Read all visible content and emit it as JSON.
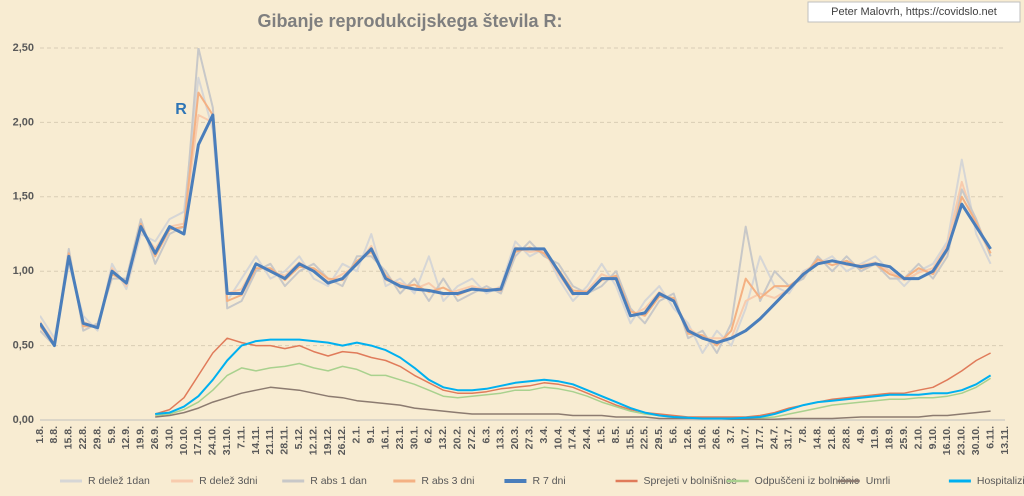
{
  "chart_data": {
    "type": "line",
    "title": "Gibanje reprodukcijskega števila R:",
    "source": "Peter Malovrh, https://covidslo.net",
    "annotation": "R",
    "grid": true,
    "legend_position": "bottom",
    "ylim": [
      0,
      2.5
    ],
    "yticks": [
      {
        "value": 0,
        "label": "0,00"
      },
      {
        "value": 0.5,
        "label": "0,50"
      },
      {
        "value": 1,
        "label": "1,00"
      },
      {
        "value": 1.5,
        "label": "1,50"
      },
      {
        "value": 2,
        "label": "2,00"
      },
      {
        "value": 2.5,
        "label": "2,50"
      }
    ],
    "categories": [
      "1.8.",
      "8.8.",
      "15.8.",
      "22.8.",
      "29.8.",
      "5.9.",
      "12.9.",
      "19.9.",
      "26.9.",
      "3.10.",
      "10.10.",
      "17.10.",
      "24.10.",
      "31.10.",
      "7.11.",
      "14.11.",
      "21.11.",
      "28.11.",
      "5.12.",
      "12.12.",
      "19.12.",
      "26.12.",
      "2.1.",
      "9.1.",
      "16.1.",
      "23.1.",
      "30.1.",
      "6.2.",
      "13.2.",
      "20.2.",
      "27.2.",
      "6.3.",
      "13.3.",
      "20.3.",
      "27.3.",
      "3.4.",
      "10.4.",
      "17.4.",
      "24.4.",
      "1.5.",
      "8.5.",
      "15.5.",
      "22.5.",
      "29.5.",
      "5.6.",
      "12.6.",
      "19.6.",
      "26.6.",
      "3.7.",
      "10.7.",
      "17.7.",
      "24.7.",
      "31.7.",
      "7.8.",
      "14.8.",
      "21.8.",
      "28.8.",
      "4.9.",
      "11.9.",
      "18.9.",
      "25.9.",
      "2.10.",
      "9.10.",
      "16.10.",
      "23.10.",
      "30.10.",
      "6.11.",
      "13.11."
    ],
    "series": [
      {
        "name": "R delež 1dan",
        "color": "#d6d6d6",
        "width": 2,
        "values": [
          0.7,
          0.55,
          1.05,
          0.7,
          0.6,
          1.05,
          0.88,
          1.25,
          1.2,
          1.35,
          1.4,
          2.3,
          1.95,
          0.8,
          0.95,
          1.1,
          0.95,
          1.0,
          1.1,
          0.95,
          0.9,
          1.05,
          1.0,
          1.25,
          0.9,
          0.95,
          0.85,
          1.1,
          0.8,
          0.9,
          0.95,
          0.85,
          0.9,
          1.2,
          1.1,
          1.15,
          0.95,
          0.8,
          0.9,
          1.05,
          0.9,
          0.65,
          0.8,
          0.9,
          0.75,
          0.65,
          0.45,
          0.6,
          0.5,
          0.75,
          1.1,
          0.9,
          0.85,
          1.0,
          1.05,
          1.1,
          1.0,
          1.05,
          1.1,
          1.0,
          0.9,
          1.0,
          1.05,
          1.2,
          1.75,
          1.25,
          1.05,
          null
        ]
      },
      {
        "name": "R delež 3dni",
        "color": "#f8cbad",
        "width": 2,
        "values": [
          0.66,
          0.52,
          1.08,
          0.66,
          0.62,
          1.02,
          0.9,
          1.28,
          1.15,
          1.3,
          1.32,
          2.05,
          2.0,
          0.85,
          0.88,
          1.05,
          1.0,
          0.97,
          1.06,
          1.0,
          0.93,
          0.98,
          1.04,
          1.17,
          0.94,
          0.92,
          0.88,
          0.92,
          0.84,
          0.87,
          0.9,
          0.87,
          0.89,
          1.16,
          1.13,
          1.14,
          0.98,
          0.84,
          0.87,
          0.98,
          0.94,
          0.7,
          0.75,
          0.86,
          0.8,
          0.62,
          0.55,
          0.55,
          0.55,
          0.8,
          0.85,
          0.82,
          0.88,
          0.99,
          1.06,
          1.07,
          1.04,
          1.04,
          1.06,
          1.0,
          0.94,
          0.99,
          1.02,
          1.18,
          1.6,
          1.3,
          1.12,
          null
        ]
      },
      {
        "name": "R abs 1 dan",
        "color": "#c8c8c8",
        "width": 2,
        "values": [
          0.6,
          0.5,
          1.15,
          0.6,
          0.65,
          0.95,
          0.95,
          1.35,
          1.05,
          1.25,
          1.3,
          2.5,
          2.1,
          0.75,
          0.8,
          1.0,
          1.05,
          0.9,
          1.0,
          1.05,
          0.95,
          0.9,
          1.1,
          1.1,
          1.0,
          0.85,
          0.95,
          0.8,
          0.95,
          0.8,
          0.85,
          0.9,
          0.85,
          1.1,
          1.2,
          1.1,
          1.05,
          0.9,
          0.85,
          0.9,
          1.0,
          0.75,
          0.65,
          0.8,
          0.85,
          0.55,
          0.6,
          0.45,
          0.65,
          1.3,
          0.8,
          1.0,
          0.9,
          0.95,
          1.1,
          1.0,
          1.1,
          1.0,
          1.05,
          0.95,
          0.95,
          1.05,
          0.95,
          1.1,
          1.55,
          1.35,
          1.1,
          null
        ]
      },
      {
        "name": "R abs 3 dni",
        "color": "#f4b183",
        "width": 2,
        "values": [
          0.63,
          0.51,
          1.12,
          0.63,
          0.63,
          0.98,
          0.93,
          1.32,
          1.1,
          1.28,
          1.3,
          2.2,
          2.05,
          0.8,
          0.84,
          1.02,
          1.02,
          0.94,
          1.03,
          1.02,
          0.95,
          0.94,
          1.07,
          1.13,
          0.97,
          0.89,
          0.91,
          0.86,
          0.89,
          0.84,
          0.88,
          0.88,
          0.87,
          1.13,
          1.16,
          1.12,
          1.01,
          0.87,
          0.86,
          0.94,
          0.97,
          0.73,
          0.7,
          0.83,
          0.82,
          0.58,
          0.57,
          0.5,
          0.6,
          0.95,
          0.82,
          0.9,
          0.9,
          0.97,
          1.08,
          1.04,
          1.07,
          1.02,
          1.05,
          0.98,
          0.95,
          1.02,
          0.98,
          1.14,
          1.5,
          1.33,
          1.12,
          null
        ]
      },
      {
        "name": "R 7 dni",
        "color": "#4a7ebb",
        "width": 3,
        "values": [
          0.65,
          0.5,
          1.1,
          0.65,
          0.62,
          1.0,
          0.92,
          1.3,
          1.12,
          1.3,
          1.25,
          1.85,
          2.05,
          0.85,
          0.85,
          1.05,
          1.0,
          0.95,
          1.05,
          1.0,
          0.92,
          0.95,
          1.05,
          1.15,
          0.95,
          0.9,
          0.88,
          0.87,
          0.85,
          0.85,
          0.88,
          0.87,
          0.88,
          1.15,
          1.15,
          1.15,
          1.0,
          0.85,
          0.85,
          0.95,
          0.95,
          0.7,
          0.72,
          0.85,
          0.8,
          0.6,
          0.55,
          0.52,
          0.55,
          0.6,
          0.68,
          0.78,
          0.88,
          0.98,
          1.05,
          1.07,
          1.05,
          1.03,
          1.05,
          1.03,
          0.95,
          0.95,
          1.0,
          1.15,
          1.45,
          1.3,
          1.15,
          null
        ]
      },
      {
        "name": "Sprejeti v bolnišnice",
        "color": "#e07b5a",
        "width": 1.5,
        "values": [
          null,
          null,
          null,
          null,
          null,
          null,
          null,
          null,
          0.04,
          0.07,
          0.15,
          0.3,
          0.45,
          0.55,
          0.52,
          0.5,
          0.5,
          0.48,
          0.5,
          0.46,
          0.43,
          0.46,
          0.45,
          0.42,
          0.4,
          0.36,
          0.3,
          0.25,
          0.2,
          0.18,
          0.18,
          0.19,
          0.21,
          0.22,
          0.23,
          0.25,
          0.24,
          0.22,
          0.18,
          0.14,
          0.1,
          0.07,
          0.05,
          0.04,
          0.03,
          0.02,
          0.02,
          0.02,
          0.02,
          0.02,
          0.03,
          0.05,
          0.08,
          0.1,
          0.12,
          0.14,
          0.15,
          0.16,
          0.17,
          0.18,
          0.18,
          0.2,
          0.22,
          0.27,
          0.33,
          0.4,
          0.45,
          null
        ]
      },
      {
        "name": "Odpuščeni iz bolnišnic",
        "color": "#a9d18e",
        "width": 1.5,
        "values": [
          null,
          null,
          null,
          null,
          null,
          null,
          null,
          null,
          0.03,
          0.04,
          0.07,
          0.12,
          0.2,
          0.3,
          0.35,
          0.33,
          0.35,
          0.36,
          0.38,
          0.35,
          0.33,
          0.36,
          0.34,
          0.3,
          0.3,
          0.27,
          0.24,
          0.2,
          0.16,
          0.15,
          0.16,
          0.17,
          0.18,
          0.2,
          0.2,
          0.22,
          0.21,
          0.19,
          0.16,
          0.12,
          0.09,
          0.06,
          0.04,
          0.03,
          0.02,
          0.015,
          0.01,
          0.01,
          0.01,
          0.01,
          0.015,
          0.02,
          0.04,
          0.06,
          0.08,
          0.1,
          0.11,
          0.12,
          0.13,
          0.14,
          0.14,
          0.15,
          0.15,
          0.16,
          0.18,
          0.22,
          0.28,
          null
        ]
      },
      {
        "name": "Umrli",
        "color": "#8c7b70",
        "width": 1.5,
        "values": [
          null,
          null,
          null,
          null,
          null,
          null,
          null,
          null,
          0.02,
          0.03,
          0.05,
          0.08,
          0.12,
          0.15,
          0.18,
          0.2,
          0.22,
          0.21,
          0.2,
          0.18,
          0.16,
          0.15,
          0.13,
          0.12,
          0.11,
          0.1,
          0.08,
          0.07,
          0.06,
          0.05,
          0.04,
          0.04,
          0.04,
          0.04,
          0.04,
          0.04,
          0.04,
          0.03,
          0.03,
          0.03,
          0.02,
          0.02,
          0.02,
          0.01,
          0.01,
          0.01,
          0.01,
          0.01,
          0.005,
          0.005,
          0.005,
          0.005,
          0.01,
          0.01,
          0.01,
          0.01,
          0.015,
          0.02,
          0.02,
          0.02,
          0.02,
          0.02,
          0.03,
          0.03,
          0.04,
          0.05,
          0.06,
          null
        ]
      },
      {
        "name": "Hospitalizirani",
        "color": "#00b0f0",
        "width": 2,
        "values": [
          null,
          null,
          null,
          null,
          null,
          null,
          null,
          null,
          0.04,
          0.05,
          0.09,
          0.16,
          0.27,
          0.4,
          0.5,
          0.53,
          0.54,
          0.54,
          0.54,
          0.53,
          0.52,
          0.5,
          0.52,
          0.5,
          0.47,
          0.42,
          0.35,
          0.27,
          0.22,
          0.2,
          0.2,
          0.21,
          0.23,
          0.25,
          0.26,
          0.27,
          0.26,
          0.24,
          0.2,
          0.16,
          0.12,
          0.08,
          0.05,
          0.03,
          0.02,
          0.015,
          0.01,
          0.01,
          0.01,
          0.015,
          0.02,
          0.04,
          0.07,
          0.1,
          0.12,
          0.13,
          0.14,
          0.15,
          0.16,
          0.17,
          0.17,
          0.17,
          0.18,
          0.18,
          0.2,
          0.24,
          0.3,
          null
        ]
      }
    ]
  }
}
